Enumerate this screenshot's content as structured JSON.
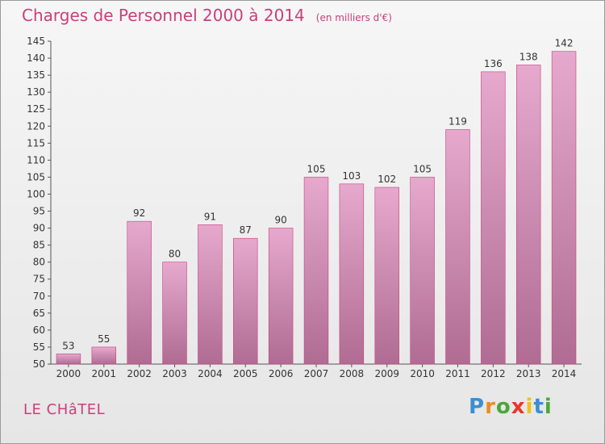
{
  "title": "Charges de Personnel 2000 à 2014",
  "subtitle": "(en milliers d'€)",
  "commune": "LE CHâTEL",
  "logo": {
    "letters": [
      "P",
      "r",
      "o",
      "x",
      "i",
      "t",
      "i"
    ],
    "colors": [
      "#3a8fd0",
      "#f08a1e",
      "#4aa83a",
      "#e8372c",
      "#f2c11a",
      "#3a8fd0",
      "#4aa83a"
    ]
  },
  "colors": {
    "accent": "#c8407a",
    "bar_top": "#e6a9cd",
    "bar_bottom": "#b06c93",
    "bar_edge": "#c8407a"
  },
  "chart_data": {
    "type": "bar",
    "title": "Charges de Personnel 2000 à 2014",
    "subtitle": "(en milliers d'€)",
    "categories": [
      "2000",
      "2001",
      "2002",
      "2003",
      "2004",
      "2005",
      "2006",
      "2007",
      "2008",
      "2009",
      "2010",
      "2011",
      "2012",
      "2013",
      "2014"
    ],
    "values": [
      53,
      55,
      92,
      80,
      91,
      87,
      90,
      105,
      103,
      102,
      105,
      119,
      136,
      138,
      142
    ],
    "xlabel": "",
    "ylabel": "",
    "ylim": [
      50,
      145
    ],
    "yticks": [
      50,
      55,
      60,
      65,
      70,
      75,
      80,
      85,
      90,
      95,
      100,
      105,
      110,
      115,
      120,
      125,
      130,
      135,
      140,
      145
    ],
    "grid": false,
    "legend": "none"
  }
}
